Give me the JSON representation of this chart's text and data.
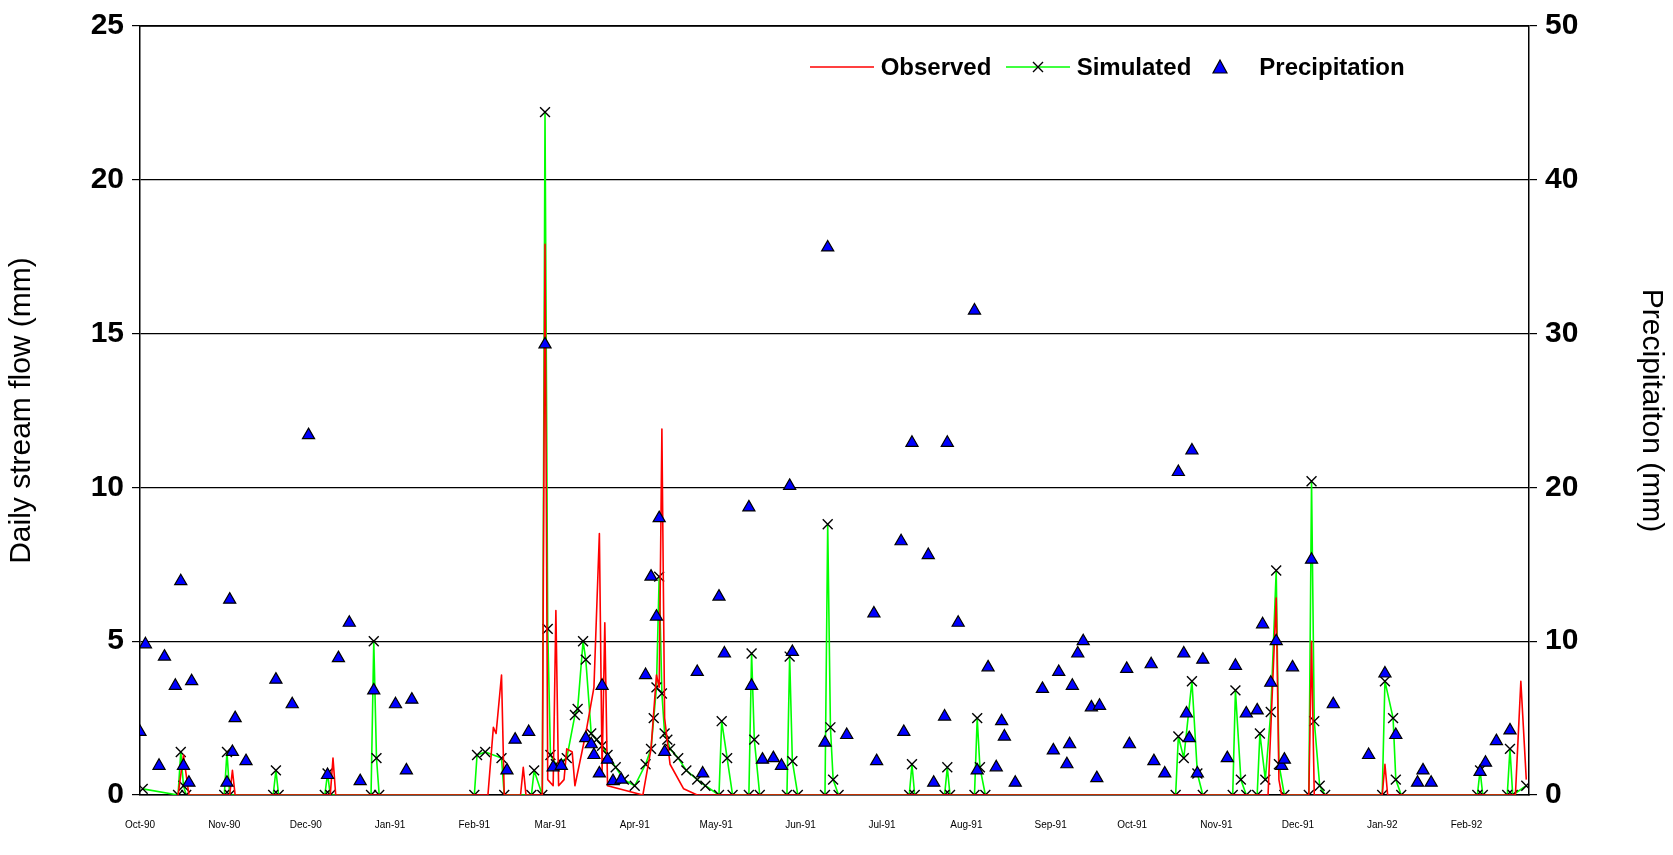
{
  "chart_data": {
    "type": "line",
    "ylabel": "Daily stream flow (mm)",
    "y2label": "Precipitaiton (mm)",
    "xlim": [
      "1990-10-01",
      "1992-02-24"
    ],
    "xticks": [
      {
        "value": "1990-10-01",
        "label": "Oct-90"
      },
      {
        "value": "1990-11-01",
        "label": "Nov-90"
      },
      {
        "value": "1990-12-01",
        "label": "Dec-90"
      },
      {
        "value": "1991-01-01",
        "label": "Jan-91"
      },
      {
        "value": "1991-02-01",
        "label": "Feb-91"
      },
      {
        "value": "1991-03-01",
        "label": "Mar-91"
      },
      {
        "value": "1991-04-01",
        "label": "Apr-91"
      },
      {
        "value": "1991-05-01",
        "label": "May-91"
      },
      {
        "value": "1991-06-01",
        "label": "Jun-91"
      },
      {
        "value": "1991-07-01",
        "label": "Jul-91"
      },
      {
        "value": "1991-08-01",
        "label": "Aug-91"
      },
      {
        "value": "1991-09-01",
        "label": "Sep-91"
      },
      {
        "value": "1991-10-01",
        "label": "Oct-91"
      },
      {
        "value": "1991-11-01",
        "label": "Nov-91"
      },
      {
        "value": "1991-12-01",
        "label": "Dec-91"
      },
      {
        "value": "1992-01-01",
        "label": "Jan-92"
      },
      {
        "value": "1992-02-01",
        "label": "Feb-92"
      }
    ],
    "ylim": [
      0,
      25
    ],
    "yticks": [
      0,
      5,
      10,
      15,
      20,
      25
    ],
    "y2lim": [
      0,
      50
    ],
    "y2ticks": [
      0,
      10,
      20,
      30,
      40,
      50
    ],
    "grid": "y",
    "legend": "top right",
    "series": [
      {
        "name": "Observed",
        "type": "line",
        "color": "#ff0000",
        "marker": "none",
        "x": [
          "1990-10-15",
          "1990-10-17",
          "1990-10-19",
          "1990-11-03",
          "1990-11-04",
          "1990-11-05",
          "1990-12-10",
          "1990-12-11",
          "1990-12-12",
          "1991-02-06",
          "1991-02-08",
          "1991-02-09",
          "1991-02-11",
          "1991-02-12",
          "1991-02-18",
          "1991-02-19",
          "1991-02-20",
          "1991-02-26",
          "1991-02-27",
          "1991-02-28",
          "1991-03-02",
          "1991-03-03",
          "1991-03-04",
          "1991-03-06",
          "1991-03-07",
          "1991-03-09",
          "1991-03-10",
          "1991-03-14",
          "1991-03-17",
          "1991-03-19",
          "1991-03-20",
          "1991-03-21",
          "1991-03-22",
          "1991-04-04",
          "1991-04-07",
          "1991-04-09",
          "1991-04-10",
          "1991-04-11",
          "1991-04-12",
          "1991-04-14",
          "1991-04-19",
          "1991-04-24",
          "1991-11-20",
          "1991-11-23",
          "1991-11-24",
          "1991-11-25",
          "1991-12-05",
          "1991-12-06",
          "1991-12-07",
          "1992-01-01",
          "1992-01-02",
          "1992-01-03",
          "1992-02-19",
          "1992-02-21",
          "1992-02-23"
        ],
        "values": [
          0,
          1.3,
          0,
          0,
          0.8,
          0,
          0,
          1.2,
          0,
          0,
          2.2,
          2.0,
          3.9,
          0,
          0,
          0.9,
          0,
          0,
          17.9,
          0.5,
          0.3,
          6.0,
          0.3,
          0.5,
          1.5,
          1.4,
          0.3,
          2.0,
          3.5,
          8.5,
          0.8,
          5.6,
          0.3,
          0,
          1.5,
          3.9,
          3.5,
          11.9,
          2.5,
          1.0,
          0.2,
          0,
          0,
          6.4,
          0.5,
          0,
          0,
          5.0,
          0,
          0,
          1.0,
          0,
          0,
          3.7,
          0.5
        ]
      },
      {
        "name": "Simulated",
        "type": "line",
        "color": "#00ff00",
        "marker": "cross",
        "x": [
          "1990-10-02",
          "1990-10-15",
          "1990-10-16",
          "1990-10-17",
          "1990-10-18",
          "1990-11-01",
          "1990-11-02",
          "1990-11-03",
          "1990-11-19",
          "1990-11-20",
          "1990-11-21",
          "1990-12-08",
          "1990-12-09",
          "1990-12-10",
          "1990-12-25",
          "1990-12-26",
          "1990-12-27",
          "1990-12-28",
          "1991-02-01",
          "1991-02-02",
          "1991-02-05",
          "1991-02-11",
          "1991-02-12",
          "1991-02-22",
          "1991-02-23",
          "1991-02-26",
          "1991-02-27",
          "1991-02-28",
          "1991-03-01",
          "1991-03-03",
          "1991-03-07",
          "1991-03-10",
          "1991-03-11",
          "1991-03-13",
          "1991-03-14",
          "1991-03-16",
          "1991-03-18",
          "1991-03-20",
          "1991-03-22",
          "1991-03-25",
          "1991-03-28",
          "1991-04-01",
          "1991-04-05",
          "1991-04-07",
          "1991-04-08",
          "1991-04-09",
          "1991-04-10",
          "1991-04-11",
          "1991-04-12",
          "1991-04-13",
          "1991-04-14",
          "1991-04-17",
          "1991-04-20",
          "1991-04-24",
          "1991-04-27",
          "1991-05-02",
          "1991-05-03",
          "1991-05-05",
          "1991-05-07",
          "1991-05-13",
          "1991-05-14",
          "1991-05-15",
          "1991-05-17",
          "1991-05-27",
          "1991-05-28",
          "1991-05-29",
          "1991-05-31",
          "1991-06-10",
          "1991-06-11",
          "1991-06-12",
          "1991-06-13",
          "1991-06-15",
          "1991-07-11",
          "1991-07-12",
          "1991-07-13",
          "1991-07-24",
          "1991-07-25",
          "1991-07-26",
          "1991-08-04",
          "1991-08-05",
          "1991-08-06",
          "1991-08-08",
          "1991-10-17",
          "1991-10-18",
          "1991-10-20",
          "1991-10-23",
          "1991-10-25",
          "1991-10-27",
          "1991-11-07",
          "1991-11-08",
          "1991-11-10",
          "1991-11-12",
          "1991-11-16",
          "1991-11-17",
          "1991-11-19",
          "1991-11-21",
          "1991-11-23",
          "1991-11-24",
          "1991-11-26",
          "1991-12-05",
          "1991-12-06",
          "1991-12-07",
          "1991-12-09",
          "1991-12-11",
          "1992-01-01",
          "1992-01-02",
          "1992-01-05",
          "1992-01-06",
          "1992-01-08",
          "1992-02-05",
          "1992-02-06",
          "1992-02-07",
          "1992-02-16",
          "1992-02-17",
          "1992-02-18",
          "1992-02-23"
        ],
        "values": [
          0.2,
          0,
          1.4,
          0.3,
          0,
          0,
          1.4,
          0,
          0,
          0.8,
          0,
          0,
          0.7,
          0,
          0,
          5.0,
          1.2,
          0,
          0,
          1.3,
          1.4,
          1.2,
          0,
          0,
          0.8,
          0,
          22.2,
          5.4,
          1.3,
          1.0,
          1.2,
          2.6,
          2.8,
          5.0,
          4.4,
          2.0,
          1.8,
          1.6,
          1.3,
          0.9,
          0.5,
          0.3,
          1.0,
          1.5,
          2.5,
          3.5,
          7.1,
          3.3,
          2.0,
          1.8,
          1.5,
          1.2,
          0.8,
          0.5,
          0.3,
          0,
          2.4,
          1.2,
          0,
          0,
          4.6,
          1.8,
          0,
          0,
          4.5,
          1.1,
          0,
          0,
          8.8,
          2.2,
          0.5,
          0,
          0,
          1.0,
          0,
          0,
          0.9,
          0,
          0,
          2.5,
          0.9,
          0,
          0,
          1.9,
          1.2,
          3.7,
          0.7,
          0,
          0,
          3.4,
          0.5,
          0,
          0,
          2.0,
          0.5,
          2.7,
          7.3,
          1.0,
          0,
          0,
          10.2,
          2.4,
          0.3,
          0,
          0,
          3.7,
          2.5,
          0.5,
          0,
          0,
          0.8,
          0,
          0,
          1.5,
          0,
          0.3
        ]
      },
      {
        "name": "Precipitation",
        "type": "scatter",
        "axis": "y2",
        "color": "#0000ff",
        "marker": "triangle",
        "x": [
          "1990-10-01",
          "1990-10-03",
          "1990-10-08",
          "1990-10-10",
          "1990-10-14",
          "1990-10-16",
          "1990-10-17",
          "1990-10-19",
          "1990-10-20",
          "1990-11-02",
          "1990-11-03",
          "1990-11-04",
          "1990-11-05",
          "1990-11-09",
          "1990-11-20",
          "1990-11-26",
          "1990-12-02",
          "1990-12-09",
          "1990-12-13",
          "1990-12-17",
          "1990-12-21",
          "1990-12-26",
          "1991-01-03",
          "1991-01-07",
          "1991-01-09",
          "1991-02-13",
          "1991-02-16",
          "1991-02-21",
          "1991-02-27",
          "1991-03-02",
          "1991-03-05",
          "1991-03-14",
          "1991-03-16",
          "1991-03-17",
          "1991-03-19",
          "1991-03-20",
          "1991-03-22",
          "1991-03-24",
          "1991-03-27",
          "1991-04-05",
          "1991-04-07",
          "1991-04-09",
          "1991-04-10",
          "1991-04-12",
          "1991-04-24",
          "1991-04-26",
          "1991-05-02",
          "1991-05-04",
          "1991-05-13",
          "1991-05-14",
          "1991-05-18",
          "1991-05-22",
          "1991-05-25",
          "1991-05-28",
          "1991-05-29",
          "1991-06-10",
          "1991-06-11",
          "1991-06-18",
          "1991-06-28",
          "1991-06-29",
          "1991-07-08",
          "1991-07-09",
          "1991-07-12",
          "1991-07-18",
          "1991-07-20",
          "1991-07-24",
          "1991-07-25",
          "1991-07-29",
          "1991-08-04",
          "1991-08-05",
          "1991-08-09",
          "1991-08-12",
          "1991-08-14",
          "1991-08-15",
          "1991-08-19",
          "1991-08-29",
          "1991-09-02",
          "1991-09-04",
          "1991-09-07",
          "1991-09-08",
          "1991-09-09",
          "1991-09-11",
          "1991-09-13",
          "1991-09-16",
          "1991-09-18",
          "1991-09-19",
          "1991-09-29",
          "1991-09-30",
          "1991-10-08",
          "1991-10-09",
          "1991-10-13",
          "1991-10-18",
          "1991-10-20",
          "1991-10-21",
          "1991-10-22",
          "1991-10-23",
          "1991-10-25",
          "1991-10-27",
          "1991-11-05",
          "1991-11-08",
          "1991-11-12",
          "1991-11-16",
          "1991-11-18",
          "1991-11-21",
          "1991-11-23",
          "1991-11-25",
          "1991-11-26",
          "1991-11-29",
          "1991-12-06",
          "1991-12-14",
          "1991-12-27",
          "1992-01-02",
          "1992-01-06",
          "1992-01-14",
          "1992-01-16",
          "1992-01-19",
          "1992-02-06",
          "1992-02-08",
          "1992-02-12",
          "1992-02-17"
        ],
        "values": [
          4.1,
          9.8,
          1.9,
          9.0,
          7.1,
          13.9,
          1.9,
          0.8,
          7.4,
          0.8,
          12.7,
          2.8,
          5.0,
          2.2,
          7.5,
          5.9,
          23.4,
          1.3,
          8.9,
          11.2,
          0.9,
          6.8,
          5.9,
          1.6,
          6.2,
          1.6,
          3.6,
          4.1,
          29.3,
          1.8,
          1.9,
          3.7,
          3.3,
          2.6,
          1.4,
          7.1,
          2.3,
          0.9,
          1.0,
          7.8,
          14.2,
          11.6,
          18.0,
          2.8,
          8.0,
          1.4,
          12.9,
          9.2,
          18.7,
          7.1,
          2.3,
          2.4,
          1.9,
          20.1,
          9.3,
          3.4,
          35.6,
          3.9,
          11.8,
          2.2,
          16.5,
          4.1,
          22.9,
          15.6,
          0.8,
          5.1,
          22.9,
          11.2,
          31.5,
          1.6,
          8.3,
          1.8,
          4.8,
          3.8,
          0.8,
          6.9,
          2.9,
          8.0,
          2.0,
          3.3,
          7.1,
          9.2,
          10.0,
          5.7,
          1.1,
          5.8,
          8.2,
          3.3,
          8.5,
          2.2,
          1.4,
          21.0,
          9.2,
          5.3,
          3.7,
          22.4,
          1.4,
          8.8,
          2.4,
          8.4,
          5.3,
          5.5,
          11.1,
          7.3,
          10.0,
          1.9,
          2.3,
          8.3,
          15.3,
          5.9,
          2.6,
          7.9,
          3.9,
          0.8,
          1.6,
          0.8,
          1.5,
          2.1,
          3.5,
          4.2
        ]
      }
    ]
  }
}
